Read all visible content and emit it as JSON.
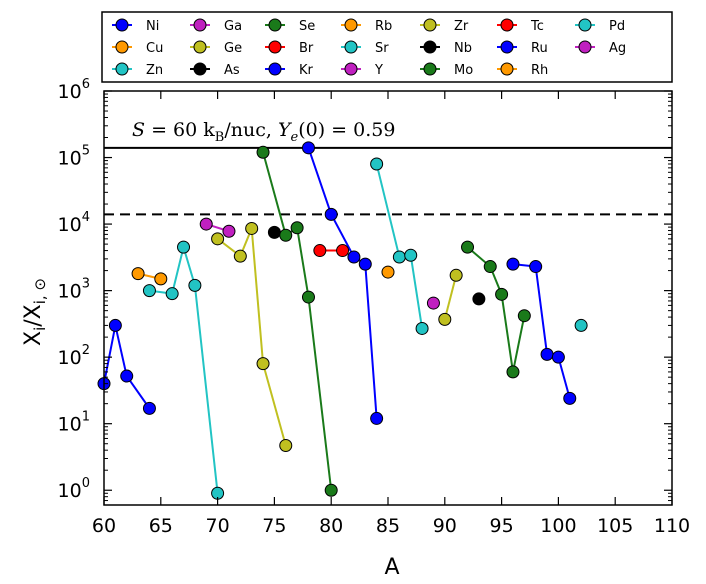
{
  "chart_data": {
    "type": "scatter",
    "xlabel": "A",
    "ylabel": "X_i/X_i,⊙",
    "ylabel_main": "X",
    "ylabel_sub1": "i",
    "ylabel_slash": "/X",
    "ylabel_sub2": "i, ⊙",
    "xlim": [
      60,
      110
    ],
    "ylim": [
      0.6,
      1000000
    ],
    "yscale": "log",
    "x_ticks": [
      60,
      65,
      70,
      75,
      80,
      85,
      90,
      95,
      100,
      105,
      110
    ],
    "x_tick_labels": [
      "60",
      "65",
      "70",
      "75",
      "80",
      "85",
      "90",
      "95",
      "100",
      "105",
      "110"
    ],
    "y_ticks": [
      1,
      10,
      100,
      1000,
      10000,
      100000,
      1000000
    ],
    "y_tick_base": "10",
    "y_tick_exponents": [
      "0",
      "1",
      "2",
      "3",
      "4",
      "5",
      "6"
    ],
    "annotation": "S = 60 k_B/nuc, Y_e(0) = 0.59",
    "annotation_parts": {
      "s": "S",
      "eq1": " = 60 k",
      "kb_sub": "B",
      "unit": "/nuc, ",
      "ye": "Y",
      "ye_sub": "e",
      "ye_arg": "(0)",
      "eq2": " = 0.59"
    },
    "hlines": [
      {
        "y": 140000,
        "style": "solid"
      },
      {
        "y": 14000,
        "style": "dashed"
      }
    ],
    "series": [
      {
        "name": "Ni",
        "color": "#0000ff",
        "x": [
          60,
          61,
          62,
          64
        ],
        "y": [
          40,
          300,
          52,
          17
        ]
      },
      {
        "name": "Cu",
        "color": "#ff9900",
        "x": [
          63,
          65
        ],
        "y": [
          1800,
          1500
        ]
      },
      {
        "name": "Zn",
        "color": "#22c4c4",
        "x": [
          64,
          66,
          67,
          68,
          70
        ],
        "y": [
          1000,
          900,
          4500,
          1200,
          0.9
        ]
      },
      {
        "name": "Ga",
        "color": "#c020c0",
        "x": [
          69,
          71
        ],
        "y": [
          10000,
          7800
        ]
      },
      {
        "name": "Ge",
        "color": "#c0c020",
        "x": [
          70,
          72,
          73,
          74,
          76
        ],
        "y": [
          6000,
          3300,
          8600,
          80,
          4.7
        ]
      },
      {
        "name": "As",
        "color": "#000000",
        "x": [
          75
        ],
        "y": [
          7500
        ]
      },
      {
        "name": "Se",
        "color": "#1a7a1a",
        "x": [
          74,
          76,
          77,
          78,
          80
        ],
        "y": [
          120000,
          6800,
          8800,
          800,
          1
        ]
      },
      {
        "name": "Br",
        "color": "#ff0000",
        "x": [
          79,
          81
        ],
        "y": [
          4000,
          4000
        ]
      },
      {
        "name": "Kr",
        "color": "#0000ff",
        "x": [
          78,
          80,
          82,
          83,
          84
        ],
        "y": [
          140000,
          14000,
          3200,
          2500,
          12
        ]
      },
      {
        "name": "Rb",
        "color": "#ff9900",
        "x": [
          85
        ],
        "y": [
          1900
        ]
      },
      {
        "name": "Sr",
        "color": "#22c4c4",
        "x": [
          84,
          86,
          87,
          88
        ],
        "y": [
          80000,
          3200,
          3400,
          270
        ]
      },
      {
        "name": "Y",
        "color": "#c020c0",
        "x": [
          89
        ],
        "y": [
          650
        ]
      },
      {
        "name": "Zr",
        "color": "#c0c020",
        "x": [
          90,
          91
        ],
        "y": [
          370,
          1700
        ]
      },
      {
        "name": "Nb",
        "color": "#000000",
        "x": [
          93
        ],
        "y": [
          750
        ]
      },
      {
        "name": "Mo",
        "color": "#1a7a1a",
        "x": [
          92,
          94,
          95,
          96,
          97
        ],
        "y": [
          4500,
          2300,
          880,
          60,
          420
        ]
      },
      {
        "name": "Tc",
        "color": "#ff0000",
        "x": [],
        "y": []
      },
      {
        "name": "Ru",
        "color": "#0000ff",
        "x": [
          96,
          98,
          99,
          100,
          101
        ],
        "y": [
          2500,
          2300,
          110,
          100,
          24
        ]
      },
      {
        "name": "Rh",
        "color": "#ff9900",
        "x": [],
        "y": []
      },
      {
        "name": "Pd",
        "color": "#22c4c4",
        "x": [
          102
        ],
        "y": [
          300
        ]
      },
      {
        "name": "Ag",
        "color": "#c020c0",
        "x": [],
        "y": []
      }
    ],
    "legend": {
      "location": "top, outside plot",
      "columns": 7
    }
  }
}
